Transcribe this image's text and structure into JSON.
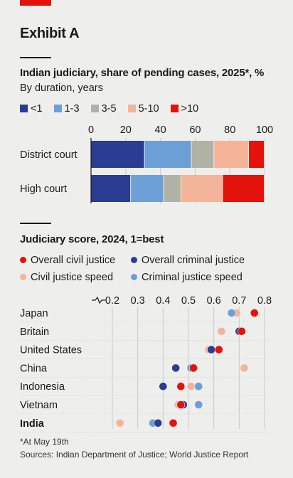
{
  "header": {
    "exhibit": "Exhibit A"
  },
  "chart_data": [
    {
      "type": "bar",
      "title": "Indian judiciary, share of pending cases, 2025*, %",
      "subtitle": "By duration, years",
      "categories": [
        "District court",
        "High court"
      ],
      "series": [
        {
          "name": "<1",
          "color": "#2a3d92",
          "values": [
            31,
            23
          ]
        },
        {
          "name": "1-3",
          "color": "#6c9fd6",
          "values": [
            27,
            19
          ]
        },
        {
          "name": "3-5",
          "color": "#b2b1a6",
          "values": [
            13,
            10
          ]
        },
        {
          "name": "5-10",
          "color": "#f3b49a",
          "values": [
            20,
            24
          ]
        },
        {
          "name": ">10",
          "color": "#e3120b",
          "values": [
            9,
            24
          ]
        }
      ],
      "xlim": [
        0,
        100
      ],
      "xticks": [
        "0",
        "20",
        "40",
        "60",
        "80",
        "100"
      ],
      "stacked": true,
      "orientation": "horizontal"
    },
    {
      "type": "scatter",
      "title": "Judiciary score, 2024, 1=best",
      "categories": [
        "Japan",
        "Britain",
        "United States",
        "China",
        "Indonesia",
        "Vietnam",
        "India"
      ],
      "highlight": "India",
      "xlim": [
        0.2,
        0.8
      ],
      "xticks": [
        "0.2",
        "0.3",
        "0.4",
        "0.5",
        "0.6",
        "0.7",
        "0.8"
      ],
      "series": [
        {
          "name": "Overall civil justice",
          "color": "#e3120b",
          "values": [
            0.76,
            0.71,
            0.62,
            0.52,
            0.47,
            0.47,
            0.44
          ]
        },
        {
          "name": "Overall criminal justice",
          "color": "#2a3d92",
          "values": [
            0.76,
            0.7,
            0.59,
            0.45,
            0.4,
            0.48,
            0.38
          ]
        },
        {
          "name": "Civil justice speed",
          "color": "#f3b49a",
          "values": [
            0.69,
            0.63,
            0.58,
            0.72,
            0.51,
            0.46,
            0.23
          ]
        },
        {
          "name": "Criminal justice speed",
          "color": "#6c9fd6",
          "values": [
            0.67,
            0.7,
            0.62,
            0.51,
            0.54,
            0.54,
            0.36
          ]
        }
      ]
    }
  ],
  "footnotes": {
    "note": "*At May 19th",
    "sources": "Sources: Indian Department of Justice; World Justice Report"
  }
}
